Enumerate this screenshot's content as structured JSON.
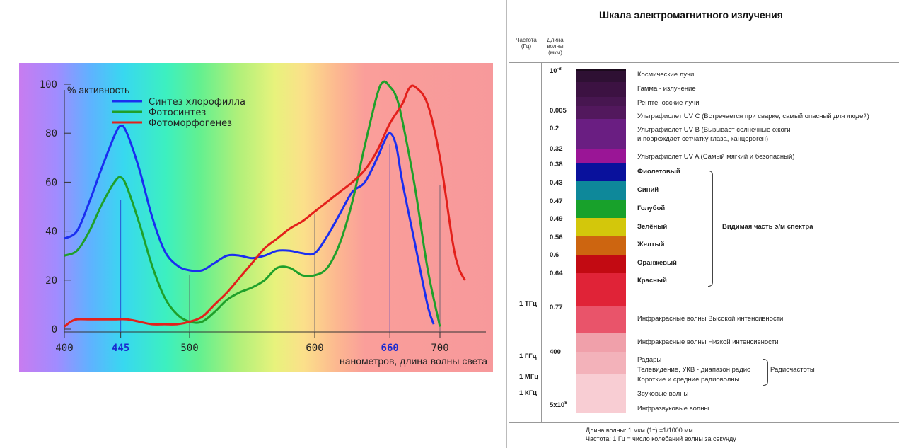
{
  "chart_data": {
    "type": "line",
    "ylabel": "% активность",
    "xlabel": "нанометров, длина волны света",
    "xlim": [
      400,
      730
    ],
    "ylim": [
      0,
      100
    ],
    "yticks": [
      "0",
      "20",
      "40",
      "60",
      "80",
      "100"
    ],
    "xticks": [
      {
        "value": 400,
        "label": "400",
        "highlight": false
      },
      {
        "value": 445,
        "label": "445",
        "highlight": true
      },
      {
        "value": 500,
        "label": "500",
        "highlight": false
      },
      {
        "value": 600,
        "label": "600",
        "highlight": false
      },
      {
        "value": 660,
        "label": "660",
        "highlight": true
      },
      {
        "value": 700,
        "label": "700",
        "highlight": false
      }
    ],
    "legend_position": "top-left",
    "series": [
      {
        "name": "Синтез хлорофилла",
        "color": "#1a2ef0",
        "x": [
          400,
          410,
          420,
          430,
          440,
          445,
          450,
          460,
          470,
          480,
          490,
          500,
          510,
          520,
          530,
          540,
          550,
          560,
          570,
          580,
          590,
          600,
          610,
          620,
          630,
          640,
          650,
          655,
          660,
          665,
          670,
          680,
          690,
          695
        ],
        "y": [
          37,
          40,
          52,
          66,
          79,
          83,
          80,
          65,
          46,
          32,
          26,
          24,
          24,
          27,
          30,
          30,
          29,
          30,
          32,
          32,
          31,
          31,
          38,
          47,
          56,
          60,
          70,
          76,
          80,
          75,
          60,
          35,
          10,
          2
        ]
      },
      {
        "name": "Фотосинтез",
        "color": "#1fa02a",
        "x": [
          400,
          410,
          420,
          430,
          440,
          445,
          450,
          460,
          470,
          480,
          490,
          500,
          510,
          520,
          530,
          540,
          550,
          560,
          570,
          580,
          590,
          600,
          610,
          620,
          630,
          640,
          650,
          655,
          660,
          665,
          670,
          680,
          690,
          700
        ],
        "y": [
          30,
          32,
          40,
          51,
          60,
          62,
          58,
          43,
          26,
          13,
          6,
          3,
          3,
          7,
          12,
          15,
          17,
          20,
          25,
          25,
          22,
          22,
          25,
          35,
          52,
          75,
          96,
          101,
          99,
          95,
          85,
          58,
          25,
          1
        ]
      },
      {
        "name": "Фотоморфогенез",
        "color": "#e3201b",
        "x": [
          400,
          405,
          410,
          420,
          430,
          440,
          450,
          460,
          470,
          480,
          490,
          500,
          510,
          520,
          530,
          540,
          550,
          560,
          570,
          580,
          590,
          600,
          610,
          620,
          630,
          640,
          650,
          660,
          670,
          675,
          680,
          690,
          700,
          710,
          715,
          720
        ],
        "y": [
          1,
          3,
          4,
          4,
          4,
          4,
          4,
          3,
          2,
          2,
          2,
          3,
          5,
          10,
          15,
          21,
          27,
          33,
          37,
          41,
          44,
          48,
          52,
          56,
          60,
          65,
          73,
          84,
          92,
          98,
          99,
          92,
          70,
          36,
          25,
          20
        ]
      }
    ]
  },
  "em_scale": {
    "title": "Шкала электромагнитного излучения",
    "col_frequency": "Частота (Гц)",
    "col_wavelength": "Длина волны (мкм)",
    "wavelengths": [
      {
        "base": "10",
        "exp": "-8"
      },
      {
        "text": "0.005"
      },
      {
        "text": "0.2"
      },
      {
        "text": "0.32"
      },
      {
        "text": "0.38"
      },
      {
        "text": "0.43"
      },
      {
        "text": "0.47"
      },
      {
        "text": "0.49"
      },
      {
        "text": "0.56"
      },
      {
        "text": "0.6"
      },
      {
        "text": "0.64"
      },
      {
        "text": "0.77"
      },
      {
        "text": "400"
      },
      {
        "base": "5x10",
        "exp": "8"
      }
    ],
    "frequencies": [
      "1 ТГц",
      "1 ГГц",
      "1 МГц",
      "1 КГц"
    ],
    "bands": [
      {
        "color": "#1b0a1c"
      },
      {
        "color": "#2e1033"
      },
      {
        "color": "#3c1242"
      },
      {
        "color": "#471650"
      },
      {
        "color": "#52185d"
      },
      {
        "color": "#6a1e82"
      },
      {
        "color": "#9a1596"
      },
      {
        "color": "#09119c"
      },
      {
        "color": "#0e889a"
      },
      {
        "color": "#18a12b"
      },
      {
        "color": "#d3c70b"
      },
      {
        "color": "#cd6510"
      },
      {
        "color": "#c20a12"
      },
      {
        "color": "#e02337"
      },
      {
        "color": "#e9546a"
      },
      {
        "color": "#f0a0aa"
      },
      {
        "color": "#f3b2ba"
      },
      {
        "color": "#f8cdd3"
      }
    ],
    "labels": [
      {
        "text": "Космические лучи",
        "bold": false
      },
      {
        "text": "Гамма - излучение",
        "bold": false
      },
      {
        "text": "Рентгеновские лучи",
        "bold": false
      },
      {
        "text": "Ультрафиолет UV С (Встречается при сварке, самый опасный для людей)",
        "bold": false
      },
      {
        "text": "Ультрафиолет UV B (Вызывает солнечные ожоги",
        "bold": false
      },
      {
        "text": "и повреждает сетчатку глаза, канцероген)",
        "bold": false
      },
      {
        "text": "Ультрафиолет UV A (Самый мягкий и безопасный)",
        "bold": false
      },
      {
        "text": "Фиолетовый",
        "bold": true
      },
      {
        "text": "Синий",
        "bold": true
      },
      {
        "text": "Голубой",
        "bold": true
      },
      {
        "text": "Зелёный",
        "bold": true
      },
      {
        "text": "Желтый",
        "bold": true
      },
      {
        "text": "Оранжевый",
        "bold": true
      },
      {
        "text": "Красный",
        "bold": true
      },
      {
        "text": "Инфракрасные волны Высокой интенсивности",
        "bold": false
      },
      {
        "text": "Инфракрасные волны Низкой интенсивности",
        "bold": false
      },
      {
        "text": "Радары",
        "bold": false
      },
      {
        "text": "Телевидение, УКВ - диапазон радио",
        "bold": false
      },
      {
        "text": "Короткие и средние радиоволны",
        "bold": false
      },
      {
        "text": "Звуковые волны",
        "bold": false
      },
      {
        "text": "Инфразвуковые волны",
        "bold": false
      }
    ],
    "visible_group_label": "Видимая часть э/м спектра",
    "radio_group_label": "Радиочастоты",
    "footnote_1": "Длина волны: 1 мкм (1т) =1/1000 мм",
    "footnote_2": "Частота: 1 Гц = число колебаний волны за секунду"
  }
}
